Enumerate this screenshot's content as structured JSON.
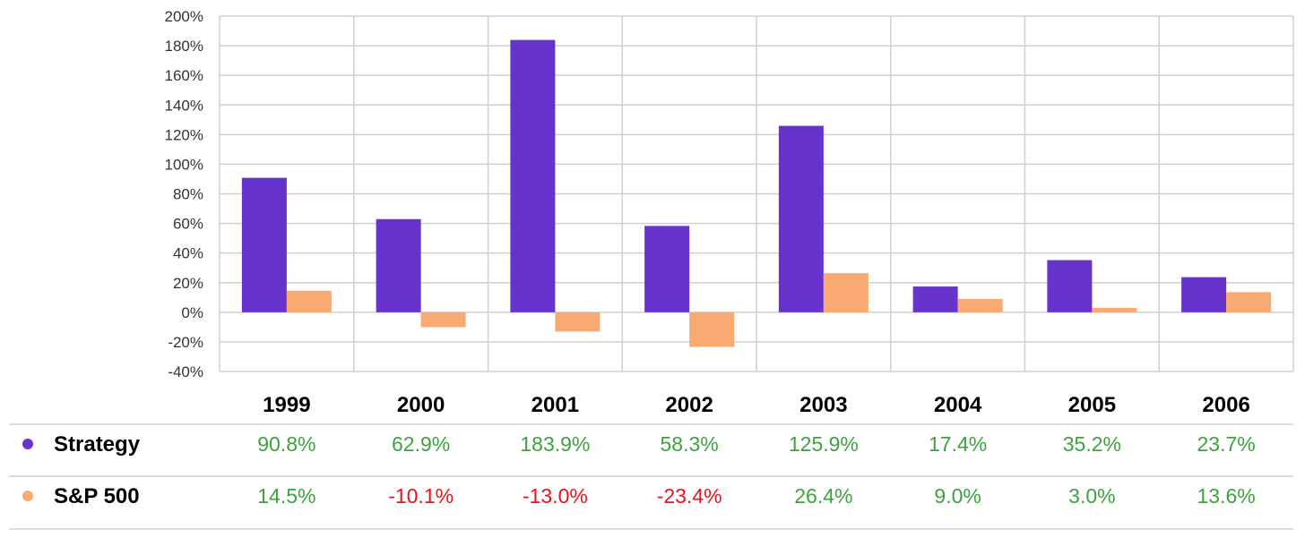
{
  "chart_data": {
    "type": "bar",
    "categories": [
      "1999",
      "2000",
      "2001",
      "2002",
      "2003",
      "2004",
      "2005",
      "2006"
    ],
    "series": [
      {
        "name": "Strategy",
        "color": "#6633cc",
        "values": [
          90.8,
          62.9,
          183.9,
          58.3,
          125.9,
          17.4,
          35.2,
          23.7
        ],
        "labels": [
          "90.8%",
          "62.9%",
          "183.9%",
          "58.3%",
          "125.9%",
          "17.4%",
          "35.2%",
          "23.7%"
        ]
      },
      {
        "name": "S&P 500",
        "color": "#f9aa72",
        "values": [
          14.5,
          -10.1,
          -13.0,
          -23.4,
          26.4,
          9.0,
          3.0,
          13.6
        ],
        "labels": [
          "14.5%",
          "-10.1%",
          "-13.0%",
          "-23.4%",
          "26.4%",
          "9.0%",
          "3.0%",
          "13.6%"
        ]
      }
    ],
    "ylim": [
      -40,
      200
    ],
    "yticks": [
      -40,
      -20,
      0,
      20,
      40,
      60,
      80,
      100,
      120,
      140,
      160,
      180,
      200
    ],
    "ytick_labels": [
      "-40%",
      "-20%",
      "0%",
      "20%",
      "40%",
      "60%",
      "80%",
      "100%",
      "120%",
      "140%",
      "160%",
      "180%",
      "200%"
    ],
    "grid": true,
    "legend": "data table below chart",
    "positive_color": "#3da33d",
    "negative_color": "#e8131b",
    "grid_color": "#d0d0d0"
  }
}
